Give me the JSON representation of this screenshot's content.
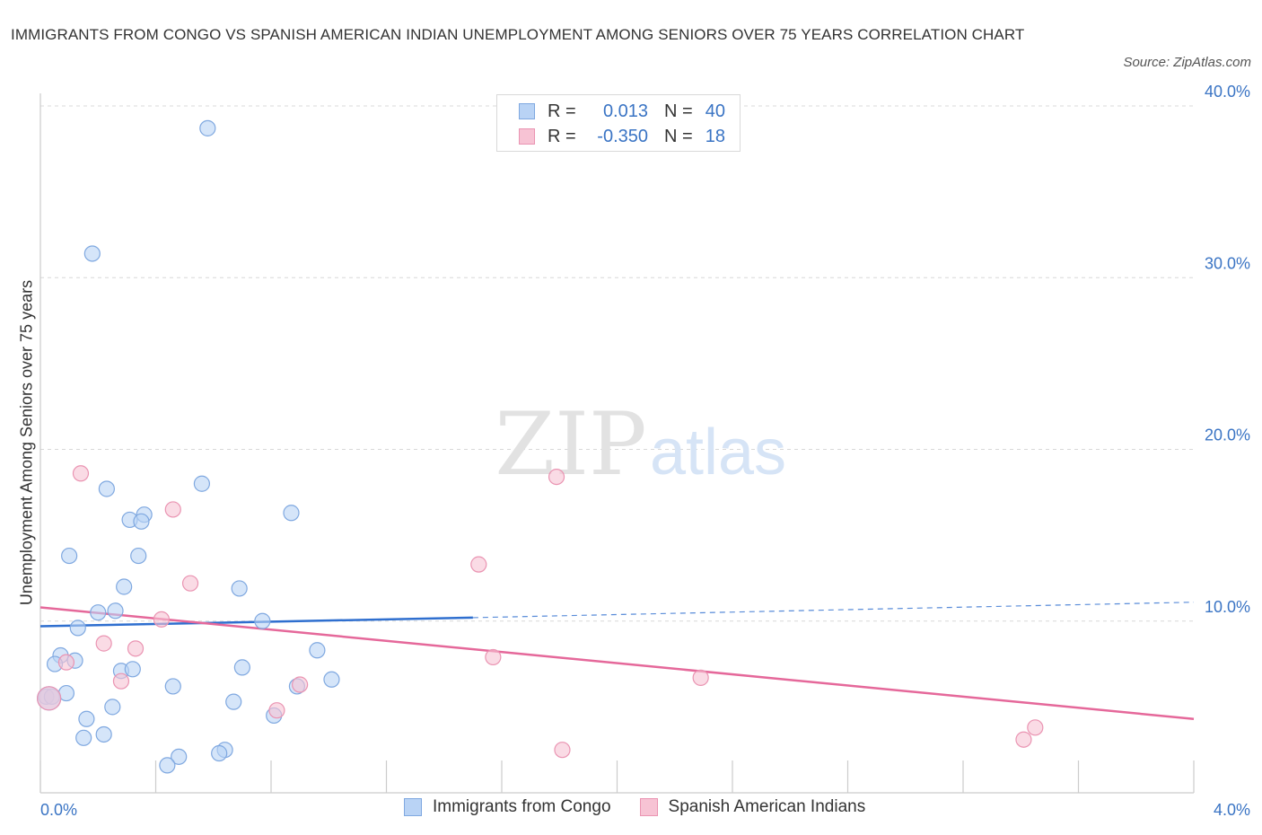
{
  "title": "IMMIGRANTS FROM CONGO VS SPANISH AMERICAN INDIAN UNEMPLOYMENT AMONG SENIORS OVER 75 YEARS CORRELATION CHART",
  "source": "Source: ZipAtlas.com",
  "watermark": {
    "zip": "ZIP",
    "atlas": "atlas"
  },
  "legend": {
    "rows": [
      {
        "r_label": "R =",
        "r_value": "0.013",
        "n_label": "N =",
        "n_value": "40"
      },
      {
        "r_label": "R =",
        "r_value": "-0.350",
        "n_label": "N =",
        "n_value": "18"
      }
    ]
  },
  "colors": {
    "blue_fill": "#b9d3f5",
    "blue_stroke": "#7fa8e0",
    "blue_line": "#2f6fcf",
    "pink_fill": "#f7c3d4",
    "pink_stroke": "#ea94b2",
    "pink_line": "#e5689a",
    "tick_label": "#3a74c4",
    "grid": "#d8d8d8"
  },
  "chart_data": {
    "type": "scatter",
    "title": "IMMIGRANTS FROM CONGO VS SPANISH AMERICAN INDIAN UNEMPLOYMENT AMONG SENIORS OVER 75 YEARS CORRELATION CHART",
    "xlabel": "",
    "ylabel": "Unemployment Among Seniors over 75 years",
    "xlim": [
      0,
      4.0
    ],
    "ylim": [
      0,
      40
    ],
    "x_tick_labels": [
      {
        "value": 0,
        "label": "0.0%"
      },
      {
        "value": 4.0,
        "label": "4.0%"
      }
    ],
    "y_tick_labels": [
      {
        "value": 10,
        "label": "10.0%"
      },
      {
        "value": 20,
        "label": "20.0%"
      },
      {
        "value": 30,
        "label": "30.0%"
      },
      {
        "value": 40,
        "label": "40.0%"
      }
    ],
    "series": [
      {
        "name": "Immigrants from Congo",
        "color": "blue",
        "points": [
          [
            0.58,
            38.7
          ],
          [
            0.18,
            31.4
          ],
          [
            0.56,
            18.0
          ],
          [
            0.23,
            17.7
          ],
          [
            0.87,
            16.3
          ],
          [
            0.36,
            16.2
          ],
          [
            0.31,
            15.9
          ],
          [
            0.35,
            15.8
          ],
          [
            0.1,
            13.8
          ],
          [
            0.34,
            13.8
          ],
          [
            0.29,
            12.0
          ],
          [
            0.69,
            11.9
          ],
          [
            0.2,
            10.5
          ],
          [
            0.26,
            10.6
          ],
          [
            0.77,
            10.0
          ],
          [
            0.13,
            9.6
          ],
          [
            0.07,
            8.0
          ],
          [
            0.12,
            7.7
          ],
          [
            0.05,
            7.5
          ],
          [
            0.96,
            8.3
          ],
          [
            0.28,
            7.1
          ],
          [
            0.32,
            7.2
          ],
          [
            0.7,
            7.3
          ],
          [
            1.01,
            6.6
          ],
          [
            0.09,
            5.8
          ],
          [
            0.02,
            5.6
          ],
          [
            0.04,
            5.6
          ],
          [
            0.46,
            6.2
          ],
          [
            0.89,
            6.2
          ],
          [
            0.67,
            5.3
          ],
          [
            0.25,
            5.0
          ],
          [
            0.16,
            4.3
          ],
          [
            0.81,
            4.5
          ],
          [
            0.22,
            3.4
          ],
          [
            0.15,
            3.2
          ],
          [
            0.64,
            2.5
          ],
          [
            0.62,
            2.3
          ],
          [
            0.48,
            2.1
          ],
          [
            0.44,
            1.6
          ],
          [
            0.03,
            5.5
          ]
        ]
      },
      {
        "name": "Spanish American Indians",
        "color": "pink",
        "points": [
          [
            0.14,
            18.6
          ],
          [
            1.79,
            18.4
          ],
          [
            0.46,
            16.5
          ],
          [
            1.52,
            13.3
          ],
          [
            0.52,
            12.2
          ],
          [
            0.42,
            10.1
          ],
          [
            0.22,
            8.7
          ],
          [
            0.33,
            8.4
          ],
          [
            1.57,
            7.9
          ],
          [
            0.09,
            7.6
          ],
          [
            2.29,
            6.7
          ],
          [
            0.28,
            6.5
          ],
          [
            0.9,
            6.3
          ],
          [
            0.82,
            4.8
          ],
          [
            1.81,
            2.5
          ],
          [
            3.45,
            3.8
          ],
          [
            3.41,
            3.1
          ],
          [
            0.03,
            5.5
          ]
        ]
      }
    ],
    "trend_lines": [
      {
        "series": "Immigrants from Congo",
        "solid": [
          [
            0,
            9.7
          ],
          [
            1.5,
            10.2
          ]
        ],
        "dashed": [
          [
            1.5,
            10.2
          ],
          [
            4.0,
            11.1
          ]
        ]
      },
      {
        "series": "Spanish American Indians",
        "solid": [
          [
            0,
            10.8
          ],
          [
            4.0,
            4.3
          ]
        ]
      }
    ]
  }
}
